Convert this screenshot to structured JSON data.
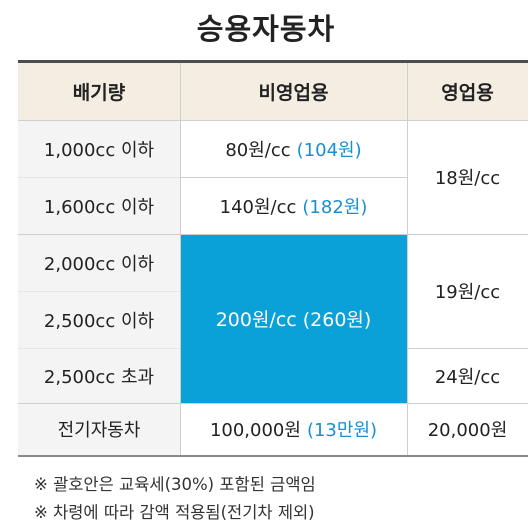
{
  "title": "승용자동차",
  "headers": {
    "displacement": "배기량",
    "noncommercial": "비영업용",
    "commercial": "영업용"
  },
  "rows": [
    {
      "label": "1,000cc 이하",
      "noncommercial_main": "80원/cc",
      "noncommercial_paren": "(104원)"
    },
    {
      "label": "1,600cc 이하",
      "noncommercial_main": "140원/cc",
      "noncommercial_paren": "(182원)"
    },
    {
      "label": "2,000cc 이하"
    },
    {
      "label": "2,500cc 이하"
    },
    {
      "label": "2,500cc 초과"
    }
  ],
  "merged": {
    "noncommercial_main": "200원/cc",
    "noncommercial_paren": "(260원)",
    "commercial_small": "18원/cc",
    "commercial_mid": "19원/cc",
    "commercial_large": "24원/cc"
  },
  "electric": {
    "label": "전기자동차",
    "noncommercial_main": "100,000원",
    "noncommercial_paren": "(13만원)",
    "commercial": "20,000원"
  },
  "notes": [
    "※ 괄호안은 교육세(30%) 포함된 금액임",
    "※ 차령에 따라 감액 적용됨(전기차 제외)"
  ],
  "colors": {
    "header_bg": "#f4ede2",
    "highlight": "#0aa0d8",
    "paren_text": "#1a8fd0"
  }
}
